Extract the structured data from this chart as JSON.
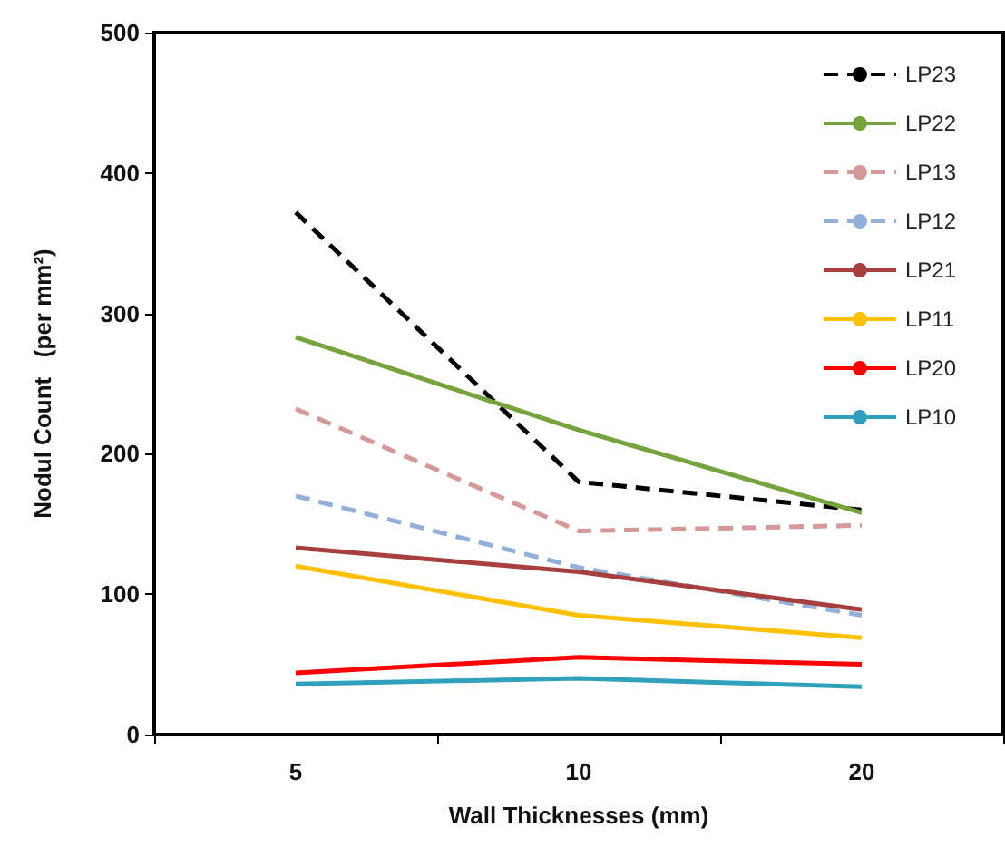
{
  "chart_data": {
    "type": "line",
    "xlabel": "Wall Thicknesses (mm)",
    "ylabel": "Nodul Count   (per mm²)",
    "categories": [
      "5",
      "10",
      "20"
    ],
    "series": [
      {
        "name": "LP23",
        "color": "#000000",
        "line_style": "dashed",
        "values": [
          372,
          180,
          160
        ]
      },
      {
        "name": "LP22",
        "color": "#77a33f",
        "line_style": "solid",
        "values": [
          283,
          217,
          158
        ]
      },
      {
        "name": "LP13",
        "color": "#d49a9a",
        "line_style": "dashed",
        "values": [
          232,
          145,
          149
        ]
      },
      {
        "name": "LP12",
        "color": "#95b0d8",
        "line_style": "dashed",
        "values": [
          170,
          119,
          85
        ]
      },
      {
        "name": "LP21",
        "color": "#a83f3f",
        "line_style": "solid",
        "values": [
          133,
          116,
          89
        ]
      },
      {
        "name": "LP11",
        "color": "#ffc000",
        "line_style": "solid",
        "values": [
          120,
          85,
          69
        ]
      },
      {
        "name": "LP20",
        "color": "#ff0000",
        "line_style": "solid",
        "values": [
          44,
          55,
          50
        ]
      },
      {
        "name": "LP10",
        "color": "#31a0bc",
        "line_style": "solid",
        "values": [
          36,
          40,
          34
        ]
      }
    ],
    "ylim": [
      0,
      500
    ],
    "yticks": [
      0,
      100,
      200,
      300,
      400,
      500
    ],
    "grid": false,
    "legend": "top right",
    "marker": "none"
  }
}
